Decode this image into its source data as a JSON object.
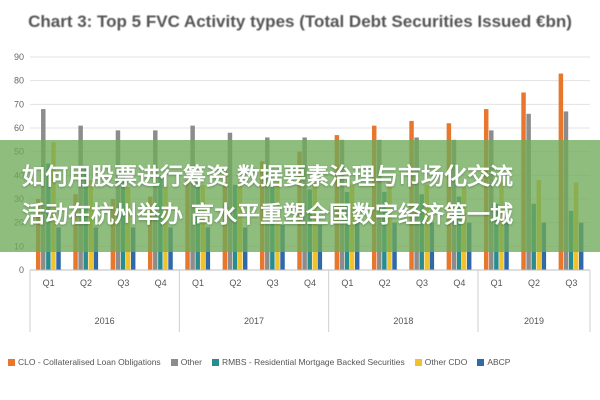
{
  "banner": {
    "line1": "如何用股票进行筹资 数据要素治理与市场化交流",
    "line2": "活动在杭州举办 高水平重塑全国数字经济第一城"
  },
  "chart_data": {
    "type": "bar",
    "title": "Chart 3: Top 5 FVC Activity types (Total Debt Securities Issued €bn)",
    "ylim": [
      0,
      90
    ],
    "yticks": [
      0,
      10,
      20,
      30,
      40,
      50,
      60,
      70,
      80,
      90
    ],
    "grid": true,
    "legend_position": "bottom",
    "categories": [
      "Q1",
      "Q2",
      "Q3",
      "Q4",
      "Q1",
      "Q2",
      "Q3",
      "Q4",
      "Q1",
      "Q2",
      "Q3",
      "Q4",
      "Q1",
      "Q2",
      "Q3"
    ],
    "years": [
      {
        "label": "2016",
        "span": 4
      },
      {
        "label": "2017",
        "span": 4
      },
      {
        "label": "2018",
        "span": 4
      },
      {
        "label": "2019",
        "span": 3
      }
    ],
    "series": [
      {
        "name": "CLO - Collateralised Loan Obligations",
        "color": "#e8762c",
        "values": [
          30,
          32,
          30,
          31,
          38,
          42,
          46,
          50,
          57,
          61,
          63,
          62,
          68,
          75,
          83
        ]
      },
      {
        "name": "Other",
        "color": "#8c8c8c",
        "values": [
          68,
          61,
          59,
          59,
          61,
          58,
          56,
          56,
          55,
          55,
          56,
          55,
          59,
          66,
          67
        ]
      },
      {
        "name": "RMBS - Residential Mortgage Backed Securities",
        "color": "#2a8c8c",
        "values": [
          45,
          44,
          40,
          40,
          38,
          36,
          35,
          34,
          33,
          33,
          32,
          31,
          28,
          28,
          25
        ]
      },
      {
        "name": "Other CDO",
        "color": "#f2c12e",
        "values": [
          54,
          38,
          35,
          36,
          36,
          37,
          37,
          37,
          36,
          37,
          36,
          35,
          37,
          38,
          37
        ]
      },
      {
        "name": "ABCP",
        "color": "#2e6aa8",
        "values": [
          18,
          18,
          18,
          18,
          18,
          18,
          19,
          19,
          20,
          20,
          20,
          20,
          20,
          20,
          20
        ]
      }
    ]
  }
}
